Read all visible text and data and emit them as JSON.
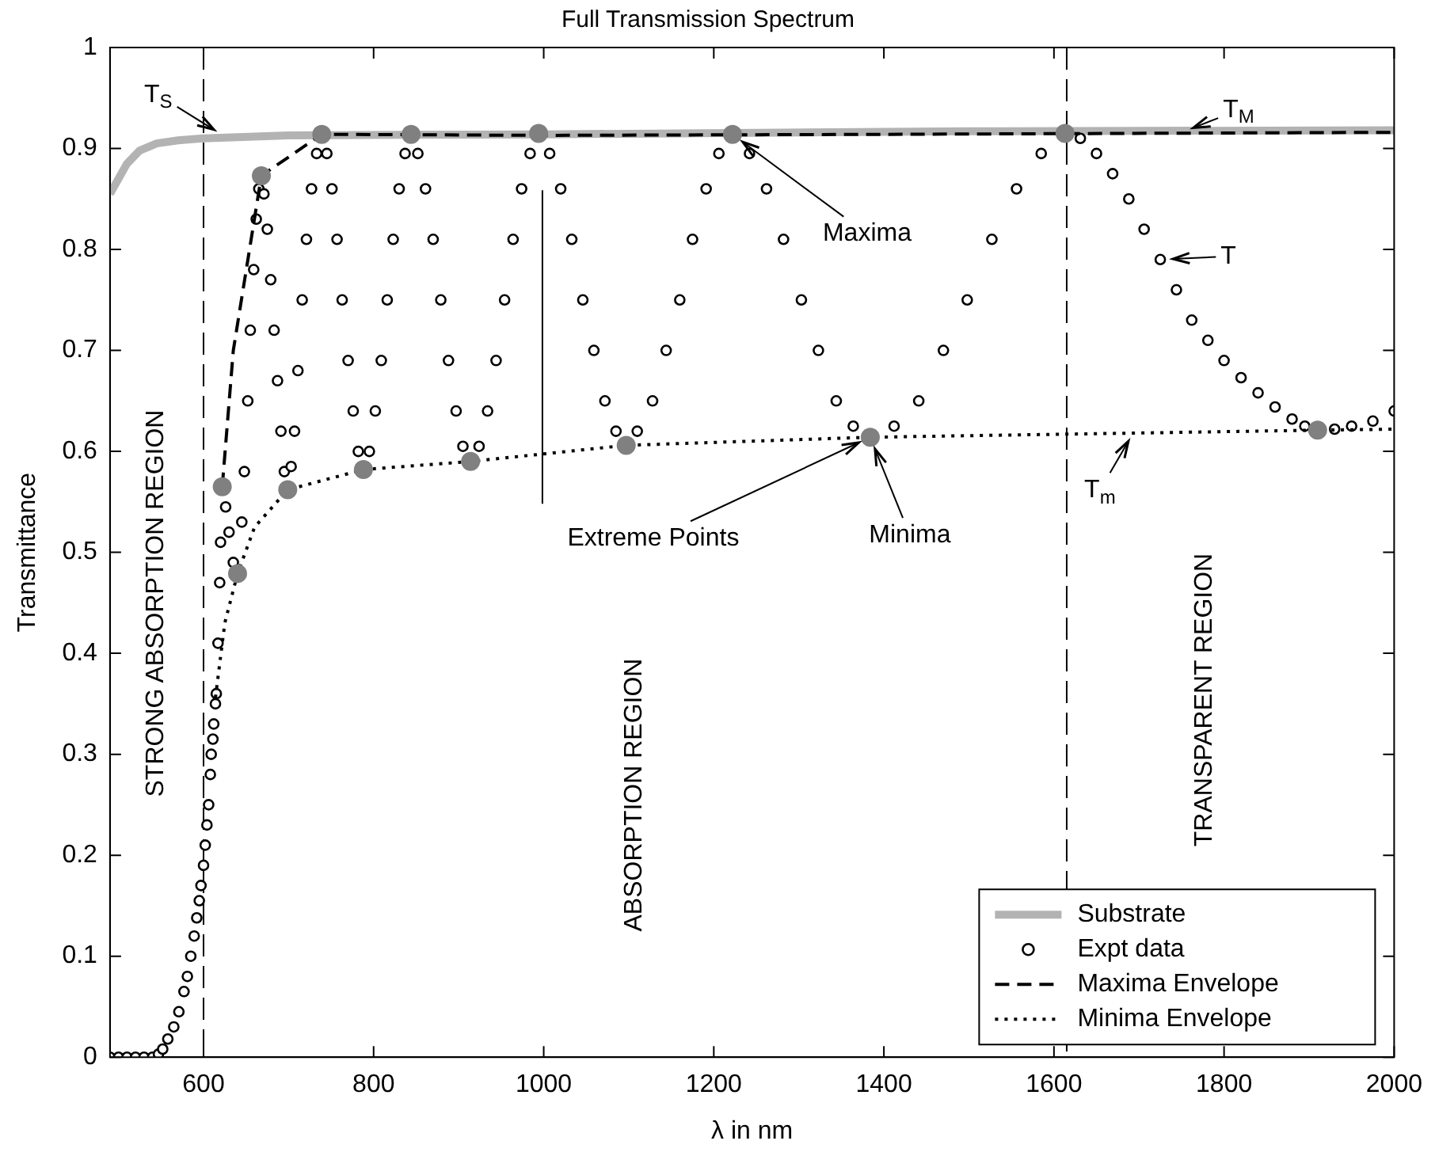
{
  "chart_data": {
    "type": "scatter",
    "title": "Full Transmission Spectrum",
    "xlabel": "λ in nm",
    "ylabel": "Transmittance",
    "xlim": [
      490,
      2000
    ],
    "xticks": [
      600,
      800,
      1000,
      1200,
      1400,
      1600,
      1800,
      2000
    ],
    "ylim": [
      0,
      1
    ],
    "yticks": [
      0,
      0.1,
      0.2,
      0.3,
      0.4,
      0.5,
      0.6,
      0.7,
      0.8,
      0.9,
      1
    ],
    "grid": false,
    "legend": "bottom right",
    "series": [
      {
        "name": "Substrate",
        "type": "line",
        "color": "#b3b3b3",
        "line_style": "solid",
        "x": [
          490,
          500,
          510,
          525,
          545,
          570,
          600,
          700,
          1000,
          1500,
          2000
        ],
        "values": [
          0.855,
          0.87,
          0.885,
          0.898,
          0.905,
          0.908,
          0.91,
          0.913,
          0.914,
          0.917,
          0.918
        ]
      },
      {
        "name": "Expt data",
        "type": "scatter",
        "marker": "circle",
        "color": "#000000",
        "x": [
          490,
          500,
          510,
          520,
          530,
          540,
          547,
          552,
          558,
          565,
          571,
          577,
          581,
          585,
          589,
          592,
          595,
          597,
          600,
          602,
          604,
          606,
          608,
          609,
          611,
          612,
          614,
          615,
          617,
          619,
          620,
          626,
          630,
          635,
          645,
          648,
          652,
          655,
          659,
          662,
          665,
          671,
          675,
          679,
          683,
          687,
          691,
          695,
          703,
          707,
          711,
          716,
          721,
          727,
          733,
          745,
          751,
          757,
          763,
          770,
          776,
          782,
          795,
          802,
          809,
          816,
          823,
          830,
          837,
          852,
          861,
          870,
          879,
          888,
          897,
          905,
          924,
          934,
          944,
          954,
          964,
          974,
          984,
          1007,
          1020,
          1033,
          1046,
          1059,
          1072,
          1085,
          1110,
          1128,
          1144,
          1160,
          1175,
          1191,
          1206,
          1242,
          1262,
          1282,
          1303,
          1323,
          1344,
          1364,
          1412,
          1441,
          1470,
          1498,
          1527,
          1556,
          1585,
          1631,
          1650,
          1669,
          1688,
          1706,
          1725,
          1744,
          1762,
          1781,
          1800,
          1820,
          1840,
          1860,
          1880,
          1895,
          1930,
          1950,
          1975,
          2000
        ],
        "values": [
          0,
          0,
          0,
          0,
          0,
          0,
          0.003,
          0.008,
          0.018,
          0.03,
          0.045,
          0.065,
          0.08,
          0.1,
          0.12,
          0.138,
          0.155,
          0.17,
          0.19,
          0.21,
          0.23,
          0.25,
          0.28,
          0.3,
          0.315,
          0.33,
          0.35,
          0.36,
          0.41,
          0.47,
          0.51,
          0.545,
          0.52,
          0.49,
          0.53,
          0.58,
          0.65,
          0.72,
          0.78,
          0.83,
          0.86,
          0.855,
          0.82,
          0.77,
          0.72,
          0.67,
          0.62,
          0.58,
          0.585,
          0.62,
          0.68,
          0.75,
          0.81,
          0.86,
          0.895,
          0.895,
          0.86,
          0.81,
          0.75,
          0.69,
          0.64,
          0.6,
          0.6,
          0.64,
          0.69,
          0.75,
          0.81,
          0.86,
          0.895,
          0.895,
          0.86,
          0.81,
          0.75,
          0.69,
          0.64,
          0.605,
          0.605,
          0.64,
          0.69,
          0.75,
          0.81,
          0.86,
          0.895,
          0.895,
          0.86,
          0.81,
          0.75,
          0.7,
          0.65,
          0.62,
          0.62,
          0.65,
          0.7,
          0.75,
          0.81,
          0.86,
          0.895,
          0.895,
          0.86,
          0.81,
          0.75,
          0.7,
          0.65,
          0.625,
          0.625,
          0.65,
          0.7,
          0.75,
          0.81,
          0.86,
          0.895,
          0.91,
          0.895,
          0.875,
          0.85,
          0.82,
          0.79,
          0.76,
          0.73,
          0.71,
          0.69,
          0.673,
          0.658,
          0.644,
          0.632,
          0.625,
          0.622,
          0.625,
          0.63,
          0.64
        ]
      },
      {
        "name": "Maxima Envelope",
        "type": "line",
        "color": "#000000",
        "line_style": "dashed",
        "x": [
          622,
          635,
          668,
          739,
          1000,
          1400,
          2000
        ],
        "values": [
          0.565,
          0.7,
          0.873,
          0.914,
          0.913,
          0.914,
          0.916
        ]
      },
      {
        "name": "Minima Envelope",
        "type": "line",
        "color": "#000000",
        "line_style": "dotted",
        "x": [
          614,
          625,
          640,
          660,
          699,
          788,
          914,
          1097,
          1384,
          1910,
          2000
        ],
        "values": [
          0.356,
          0.43,
          0.479,
          0.525,
          0.562,
          0.582,
          0.59,
          0.606,
          0.614,
          0.621,
          0.622
        ]
      },
      {
        "type": "scatter",
        "marker": "circle",
        "color": "#808080",
        "x": [
          622,
          640,
          668,
          699,
          739,
          788,
          844,
          914,
          994,
          1097,
          1222,
          1384,
          1613,
          1910
        ],
        "values": [
          0.565,
          0.479,
          0.873,
          0.562,
          0.914,
          0.582,
          0.914,
          0.59,
          0.915,
          0.606,
          0.914,
          0.614,
          0.915,
          0.621
        ]
      }
    ],
    "ref_lines": [
      {
        "axis": "x",
        "value": 600,
        "color": "#000000",
        "line_style": "dashed"
      },
      {
        "axis": "x",
        "value": 1615,
        "color": "#000000",
        "line_style": "dashed"
      }
    ],
    "annotations": [
      {
        "text": "T$_{S}$",
        "x": 625,
        "y": 0.912
      },
      {
        "text": "T$_{M}$",
        "x": 1750,
        "y": 0.916
      },
      {
        "text": "T",
        "x": 1725,
        "y": 0.79
      },
      {
        "text": "T$_{m}$",
        "x": 1695,
        "y": 0.621
      },
      {
        "text": "Maxima",
        "x": 1222,
        "y": 0.914
      },
      {
        "text": "Minima",
        "x": 1384,
        "y": 0.614
      },
      {
        "text": "Extreme Points",
        "x": 1384,
        "y": 0.614
      },
      "STRONG ABSORPTION REGION",
      "ABSORPTION REGION",
      "TRANSPARENT REGION"
    ]
  }
}
